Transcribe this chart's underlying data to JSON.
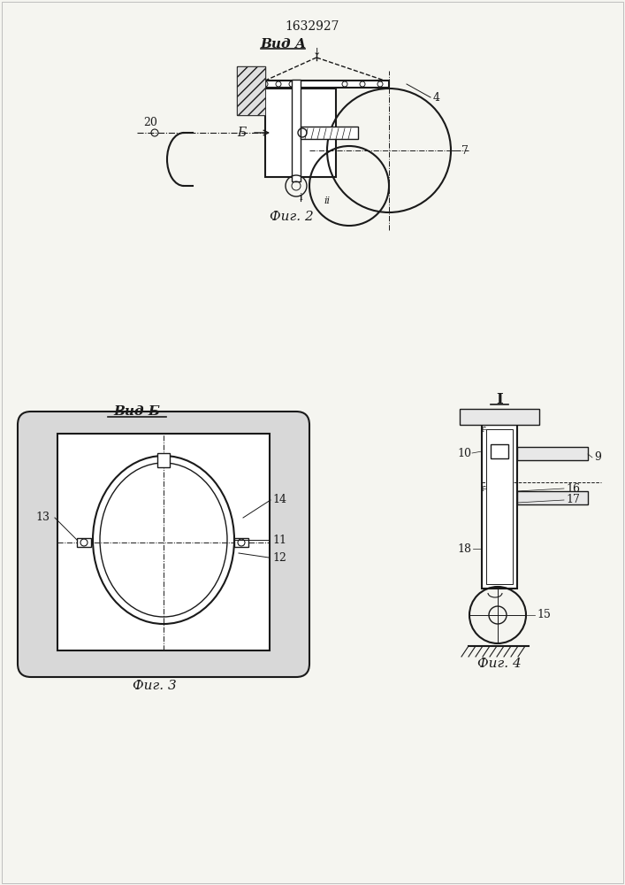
{
  "bg_color": "#f5f5f0",
  "line_color": "#1a1a1a",
  "patent_number": "1632927",
  "fig2_label": "Фиг. 2",
  "fig3_label": "Фиг. 3",
  "fig4_label": "Фиг. 4",
  "vid_a_label": "Вид А",
  "vid_b_label": "Вид Б",
  "section_label": "I"
}
